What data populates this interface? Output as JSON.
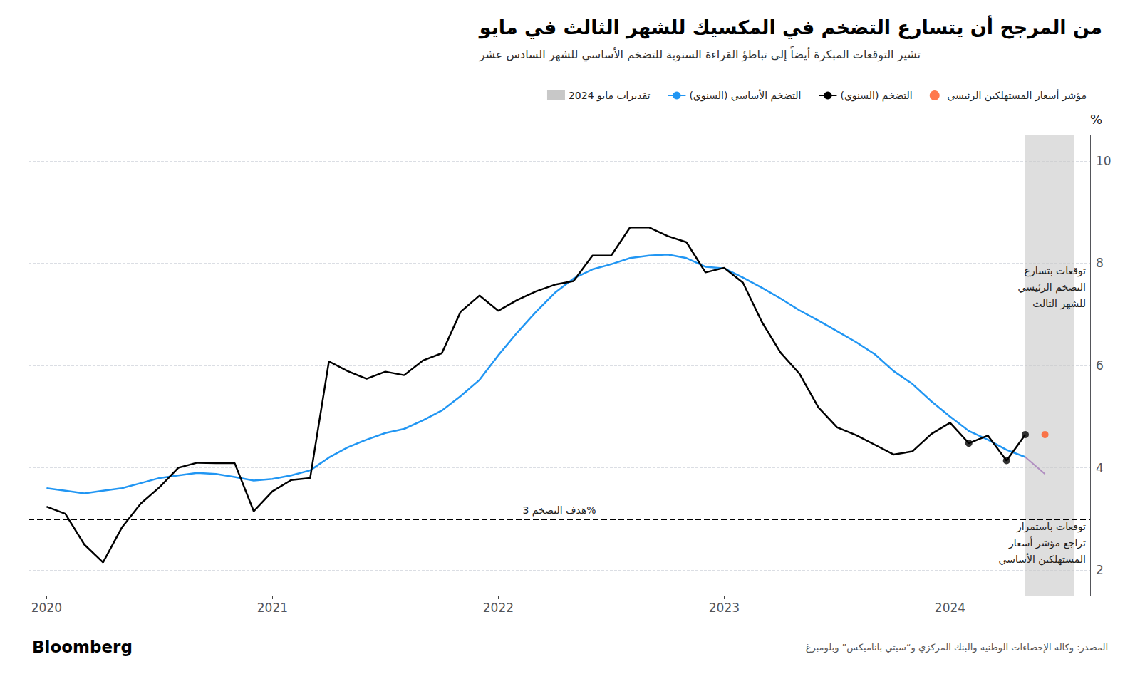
{
  "chart_data": {
    "type": "line",
    "title": "من المرجح أن يتسارع التضخم في المكسيك للشهر الثالث في مايو",
    "subtitle": "تشير التوقعات المبكرة أيضاً إلى تباطؤ القراءة السنوية للتضخم الأساسي للشهر السادس عشر",
    "ylabel": "%",
    "branding": "Bloomberg",
    "source": "المصدر: وكالة الإحصاءات الوطنية والبنك المركزي و“سيتي باناميكس” وبلومبرغ",
    "xlim": [
      2019.92,
      2024.62
    ],
    "xticks": [
      2020,
      2021,
      2022,
      2023,
      2024
    ],
    "ylim": [
      1.5,
      10.5
    ],
    "yticks": [
      2,
      4,
      6,
      8,
      10
    ],
    "grid": true,
    "legend": "top",
    "series": [
      {
        "name": "تقديرات مايو 2024",
        "type": "band",
        "color": "#C8C8C8",
        "start": 2024.33,
        "end": 2024.55
      },
      {
        "name": "التضخم الأساسي (السنوي)",
        "type": "line",
        "color": "#2196F3",
        "x": [
          2020.0,
          2020.083,
          2020.167,
          2020.25,
          2020.333,
          2020.417,
          2020.5,
          2020.583,
          2020.667,
          2020.75,
          2020.833,
          2020.917,
          2021.0,
          2021.083,
          2021.167,
          2021.25,
          2021.333,
          2021.417,
          2021.5,
          2021.583,
          2021.667,
          2021.75,
          2021.833,
          2021.917,
          2022.0,
          2022.083,
          2022.167,
          2022.25,
          2022.333,
          2022.417,
          2022.5,
          2022.583,
          2022.667,
          2022.75,
          2022.833,
          2022.917,
          2023.0,
          2023.083,
          2023.167,
          2023.25,
          2023.333,
          2023.417,
          2023.5,
          2023.583,
          2023.667,
          2023.75,
          2023.833,
          2023.917,
          2024.0,
          2024.083,
          2024.167,
          2024.25,
          2024.333
        ],
        "values": [
          3.6,
          3.55,
          3.5,
          3.55,
          3.6,
          3.7,
          3.8,
          3.85,
          3.9,
          3.88,
          3.82,
          3.75,
          3.78,
          3.85,
          3.95,
          4.2,
          4.4,
          4.55,
          4.68,
          4.76,
          4.93,
          5.12,
          5.4,
          5.72,
          6.2,
          6.64,
          7.05,
          7.42,
          7.7,
          7.88,
          7.98,
          8.1,
          8.15,
          8.17,
          8.1,
          7.93,
          7.9,
          7.72,
          7.52,
          7.31,
          7.08,
          6.88,
          6.67,
          6.46,
          6.22,
          5.89,
          5.64,
          5.3,
          5.0,
          4.72,
          4.55,
          4.35,
          4.21
        ]
      },
      {
        "name": "التضخم (السنوي)",
        "type": "line",
        "color": "#000000",
        "x": [
          2020.0,
          2020.083,
          2020.167,
          2020.25,
          2020.333,
          2020.417,
          2020.5,
          2020.583,
          2020.667,
          2020.75,
          2020.833,
          2020.917,
          2021.0,
          2021.083,
          2021.167,
          2021.25,
          2021.333,
          2021.417,
          2021.5,
          2021.583,
          2021.667,
          2021.75,
          2021.833,
          2021.917,
          2022.0,
          2022.083,
          2022.167,
          2022.25,
          2022.333,
          2022.417,
          2022.5,
          2022.583,
          2022.667,
          2022.75,
          2022.833,
          2022.917,
          2023.0,
          2023.083,
          2023.167,
          2023.25,
          2023.333,
          2023.417,
          2023.5,
          2023.583,
          2023.667,
          2023.75,
          2023.833,
          2023.917,
          2024.0,
          2024.083,
          2024.167,
          2024.25,
          2024.333
        ],
        "values": [
          3.24,
          3.1,
          2.5,
          2.15,
          2.83,
          3.3,
          3.62,
          4.0,
          4.1,
          4.09,
          4.09,
          3.15,
          3.54,
          3.76,
          3.8,
          6.08,
          5.89,
          5.74,
          5.88,
          5.81,
          6.1,
          6.24,
          7.05,
          7.37,
          7.07,
          7.28,
          7.45,
          7.58,
          7.65,
          8.15,
          8.15,
          8.7,
          8.7,
          8.53,
          8.41,
          7.82,
          7.91,
          7.62,
          6.85,
          6.25,
          5.84,
          5.18,
          4.79,
          4.64,
          4.45,
          4.26,
          4.32,
          4.66,
          4.88,
          4.48,
          4.63,
          4.14,
          4.65
        ]
      },
      {
        "type": "line",
        "color": "#B08EC0",
        "x": [
          2024.333,
          2024.42
        ],
        "values": [
          4.21,
          3.88
        ]
      },
      {
        "type": "scatter",
        "color": "#000000",
        "x": [
          2024.083,
          2024.25,
          2024.333
        ],
        "values": [
          4.48,
          4.14,
          4.65
        ]
      },
      {
        "name": "مؤشر أسعار المستهلكين الرئيسي",
        "type": "scatter",
        "color": "#FF5722",
        "x": [
          2024.42
        ],
        "values": [
          4.65
        ]
      }
    ],
    "reference_lines": [
      {
        "y": 3.0,
        "color": "#000000",
        "line_style": "dashed",
        "label": "هدف التضخم 3%"
      }
    ],
    "annotations": [
      "توقعات بتسارع\nالتضخم الرئيسي\nللشهر الثالث",
      "توقعات باستمرار\nتراجع مؤشر أسعار\nالمستهلكين الأساسي"
    ]
  }
}
